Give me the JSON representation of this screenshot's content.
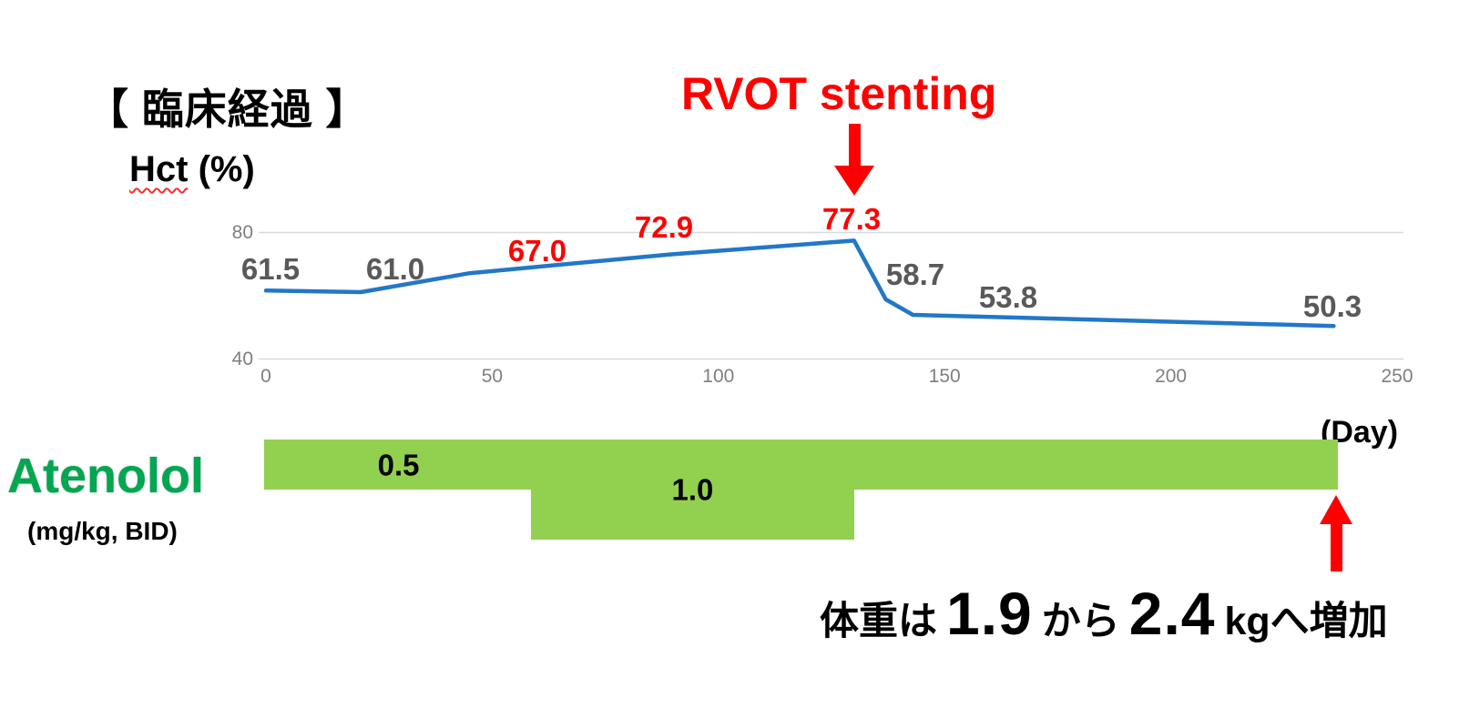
{
  "page": {
    "title": "【 臨床経過 】"
  },
  "hct_axis": {
    "main": "Hct",
    "unit": "(%)"
  },
  "chart_data": {
    "type": "line",
    "title": "臨床経過 (clinical course of hematocrit)",
    "ylabel": "Hct (%)",
    "xlabel": "(Day)",
    "xlim": [
      0,
      250
    ],
    "ylim": [
      40,
      80
    ],
    "x_ticks": [
      "0",
      "50",
      "100",
      "150",
      "200",
      "250"
    ],
    "y_ticks": [
      "80",
      "40"
    ],
    "grid": "horizontal gridlines at Hct 40 and 80 only",
    "legend": "none",
    "series_name": "Hct (%)",
    "line_color": "#2277C8",
    "points": [
      {
        "day": 0,
        "value": 61.5,
        "label": "61.5",
        "label_color": "#595959"
      },
      {
        "day": 21,
        "value": 61.0,
        "label": "61.0",
        "label_color": "#595959"
      },
      {
        "day": 45,
        "value": 67.0,
        "label": "67.0",
        "label_color": "#FF0000"
      },
      {
        "day": 89,
        "value": 72.9,
        "label": "72.9",
        "label_color": "#FF0000"
      },
      {
        "day": 130,
        "value": 77.3,
        "label": "77.3",
        "label_color": "#FF0000"
      },
      {
        "day": 137,
        "value": 58.7,
        "label": "58.7",
        "label_color": "#595959"
      },
      {
        "day": 143,
        "value": 53.8,
        "label": "53.8",
        "label_color": "#595959"
      },
      {
        "day": 236,
        "value": 50.3,
        "label": "50.3",
        "label_color": "#595959"
      }
    ],
    "event_annotation": {
      "text": "RVOT stenting",
      "day": 130,
      "color": "#FF0000"
    }
  },
  "atenolol": {
    "name": "Atenolol",
    "unit": "(mg/kg, BID)",
    "bar_color": "#92D050",
    "name_color": "#00A650",
    "segments": [
      {
        "from_day": 0,
        "to_day": 59,
        "dose": "0.5",
        "show_label": true
      },
      {
        "from_day": 59,
        "to_day": 130,
        "dose": "1.0",
        "show_label": true
      },
      {
        "from_day": 130,
        "to_day": 237,
        "dose": "0.5",
        "show_label": false
      }
    ]
  },
  "weight_note": {
    "prefix": "体重は",
    "from": "1.9",
    "conj": "から",
    "to": "2.4",
    "suffix": "kgへ増加"
  }
}
